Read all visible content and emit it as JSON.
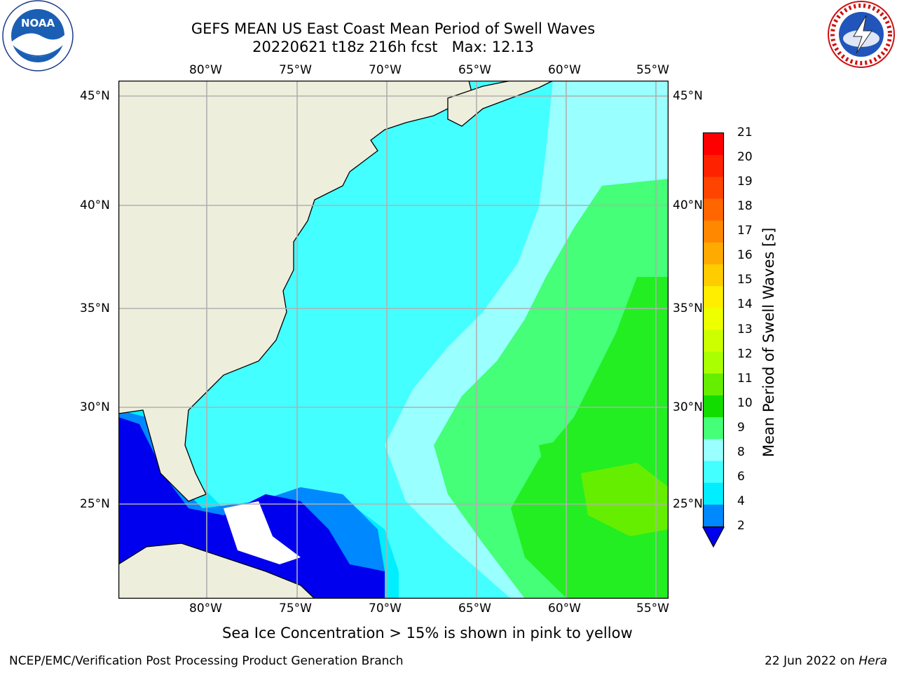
{
  "title": {
    "line1": "GEFS MEAN US East Coast Mean Period of Swell Waves",
    "line2": "20220621 t18z 216h fcst   Max: 12.13"
  },
  "logos": {
    "left": {
      "name": "noaa-logo",
      "text": "NOAA"
    },
    "right": {
      "name": "nws-logo",
      "text": "NATIONAL WEATHER SERVICE"
    }
  },
  "map": {
    "lon_ticks": [
      "80°W",
      "75°W",
      "70°W",
      "65°W",
      "60°W",
      "55°W"
    ],
    "lat_ticks_left": [
      "45°N",
      "40°N",
      "35°N",
      "30°N",
      "25°N"
    ],
    "lat_ticks_right": [
      "45°N",
      "40°N",
      "35°N",
      "30°N",
      "25°N"
    ],
    "land_color": "#eeeedd",
    "grid_color": "#b0b0b0"
  },
  "colorbar": {
    "label": "Mean Period of Swell Waves [s]",
    "ticks": [
      "21",
      "20",
      "19",
      "18",
      "17",
      "16",
      "15",
      "14",
      "13",
      "12",
      "11",
      "10",
      "9",
      "8",
      "6",
      "4",
      "2"
    ],
    "colors": [
      "#ff0000",
      "#ff2200",
      "#ff4400",
      "#ff6600",
      "#ff8800",
      "#ffaa00",
      "#ffcc00",
      "#ffee00",
      "#eeff00",
      "#ccff00",
      "#aaff00",
      "#66ee00",
      "#11dd00",
      "#44ff77",
      "#99ffff",
      "#44ffff",
      "#00eeff",
      "#0088ff"
    ],
    "extend_color": "#0000ee"
  },
  "caption": "Sea Ice Concentration > 15% is shown in pink to yellow",
  "footer": {
    "left": "NCEP/EMC/Verification Post Processing Product Generation Branch",
    "right_prefix": "22 Jun 2022 on ",
    "right_host": "Hera"
  }
}
